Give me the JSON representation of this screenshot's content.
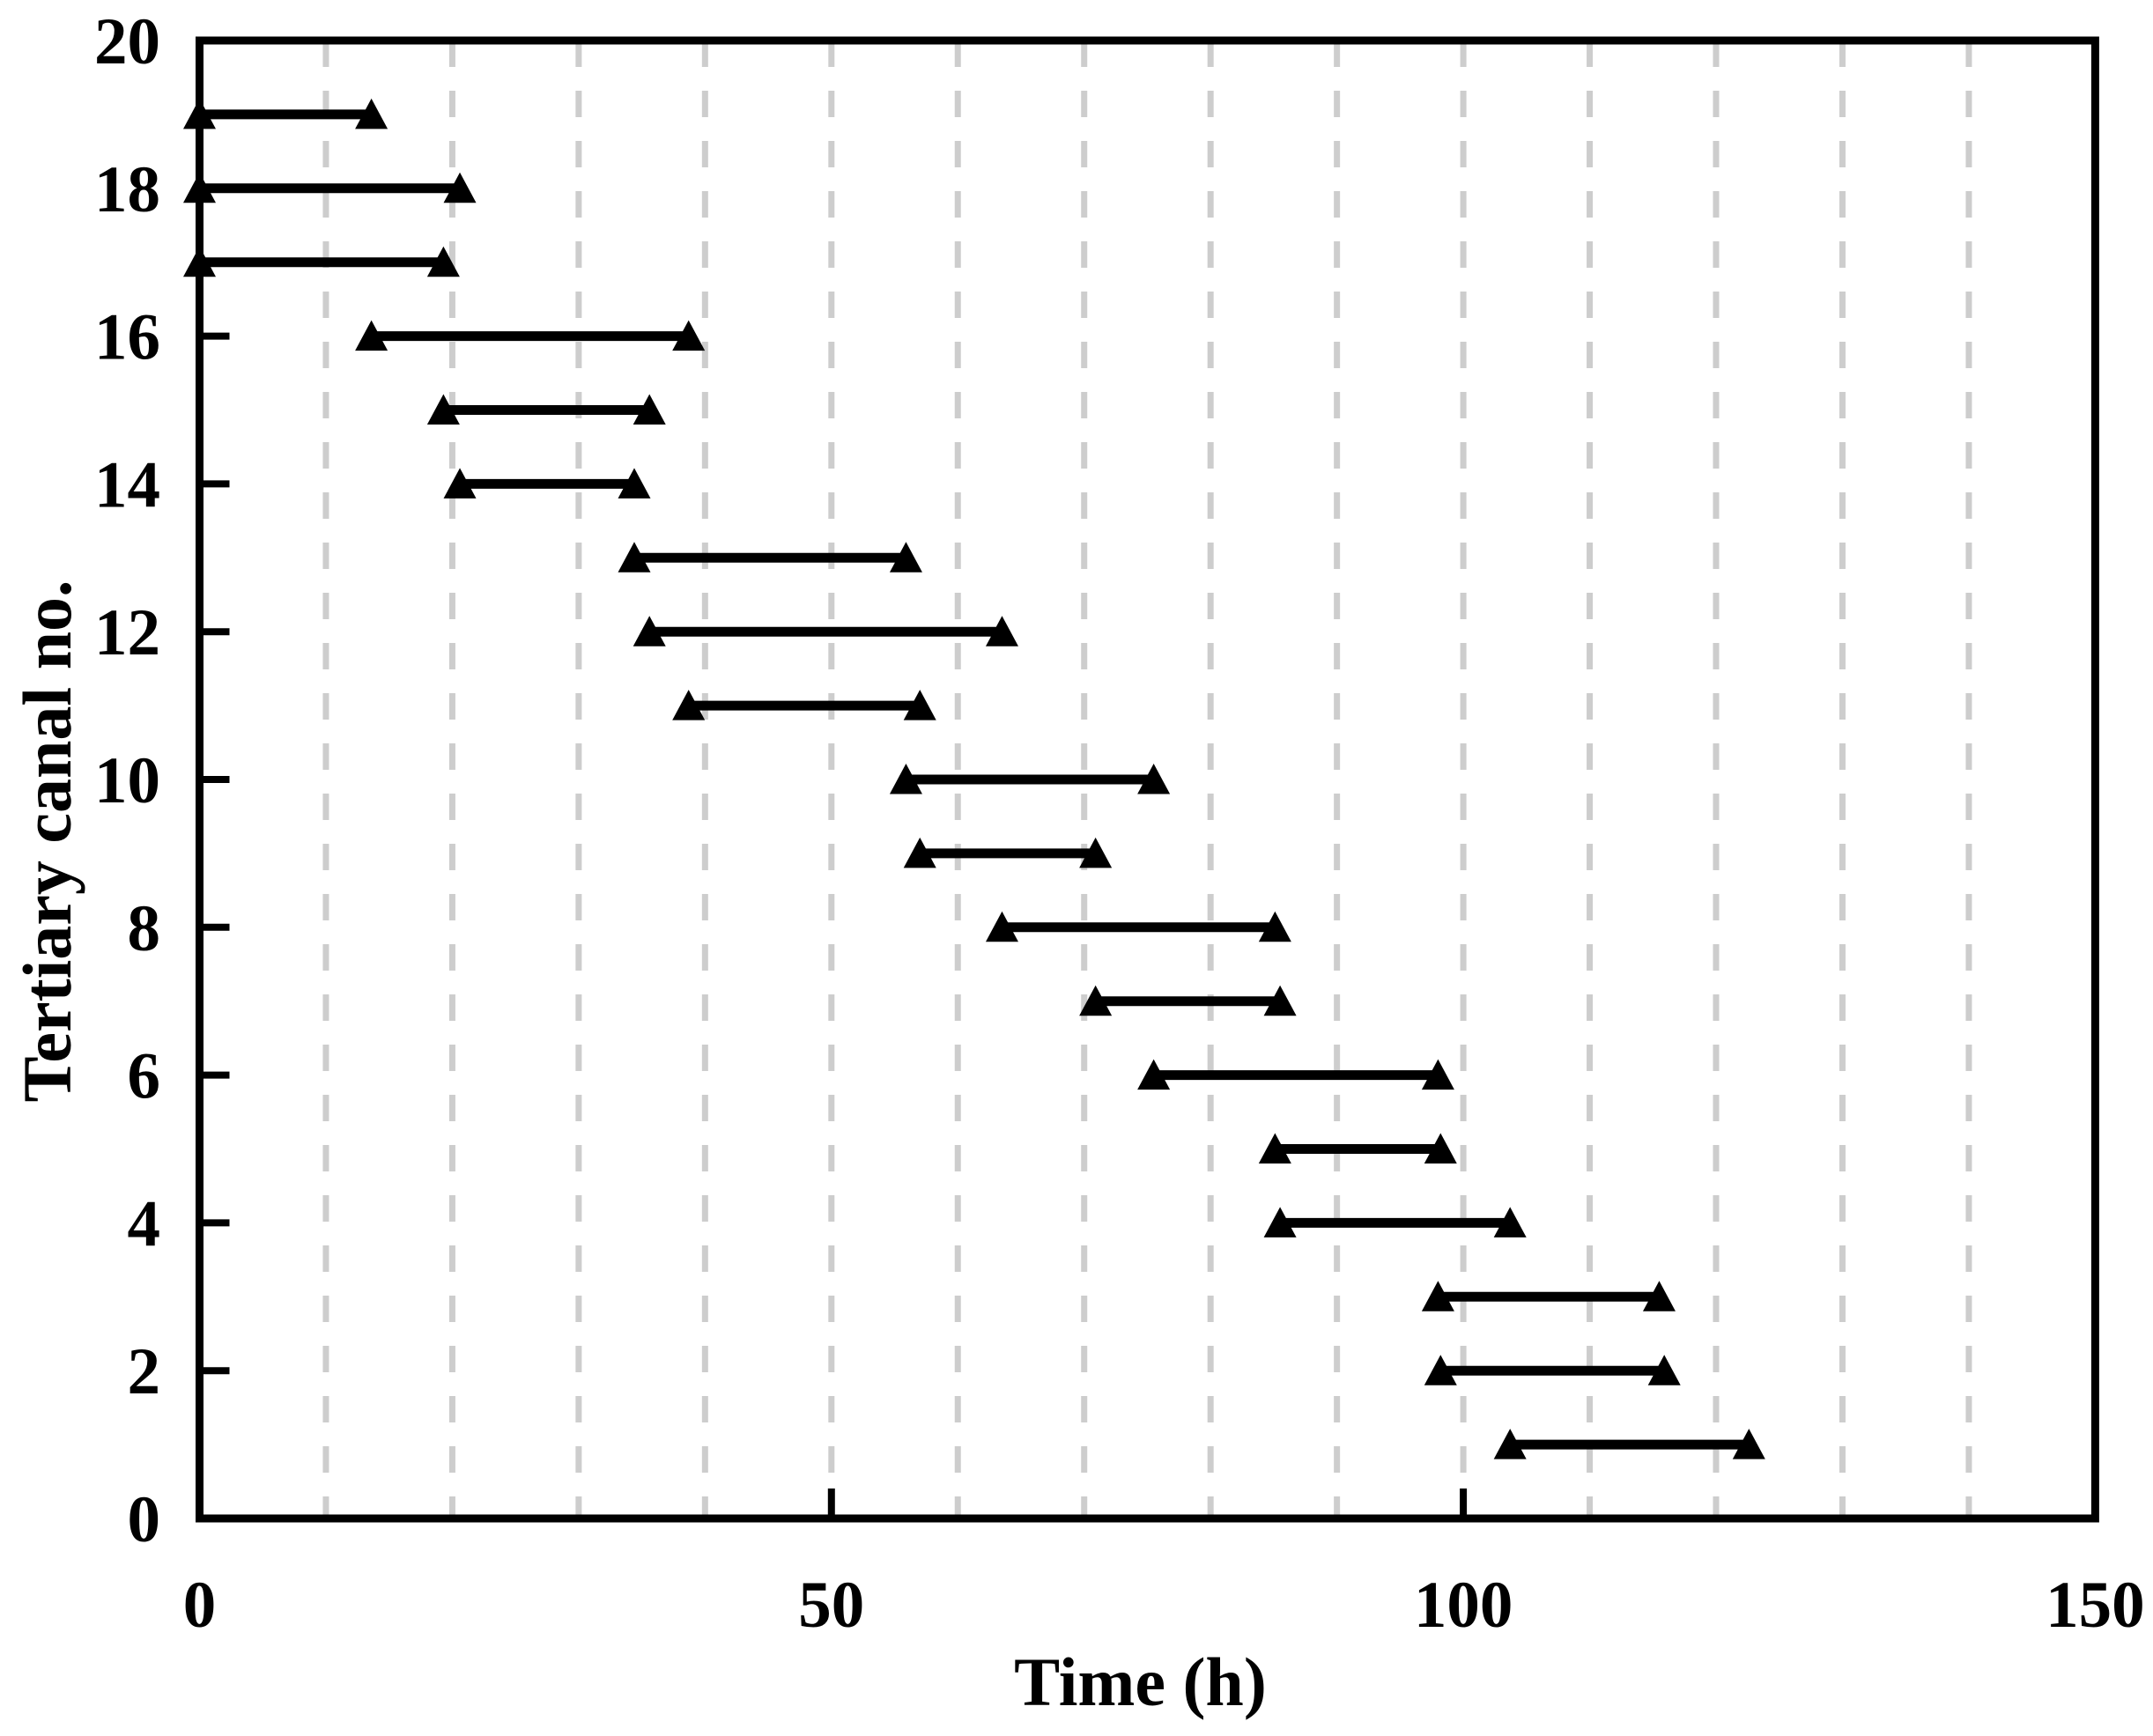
{
  "chart_data": {
    "type": "line",
    "variant": "schedule-gantt-segments",
    "title": "",
    "xlabel": "Time (h)",
    "ylabel": "Tertiary canal no.",
    "xlim": [
      0,
      150
    ],
    "ylim": [
      0,
      20
    ],
    "x_tick_labels": [
      0,
      50,
      100,
      150
    ],
    "x_major_ticks": [
      50,
      100
    ],
    "x_grid_lines": [
      10,
      20,
      30,
      40,
      50,
      60,
      70,
      80,
      90,
      100,
      110,
      120,
      130,
      140
    ],
    "y_tick_labels": [
      0,
      2,
      4,
      6,
      8,
      10,
      12,
      14,
      16,
      18,
      20
    ],
    "y_major_ticks": [
      2,
      4,
      6,
      8,
      10,
      12,
      14,
      16,
      18
    ],
    "grid": "vertical-dashed",
    "legend": "none",
    "marker": "filled-triangle-up",
    "colors": {
      "segment": "#000000",
      "marker": "#000000",
      "frame": "#000000",
      "grid": "#cdcdcd",
      "background": "#ffffff"
    },
    "segments": [
      {
        "canal": 19,
        "start": 0,
        "end": 13.6
      },
      {
        "canal": 18,
        "start": 0,
        "end": 20.6
      },
      {
        "canal": 17,
        "start": 0,
        "end": 19.3
      },
      {
        "canal": 16,
        "start": 13.6,
        "end": 38.7
      },
      {
        "canal": 15,
        "start": 19.3,
        "end": 35.6
      },
      {
        "canal": 14,
        "start": 20.6,
        "end": 34.4
      },
      {
        "canal": 13,
        "start": 34.4,
        "end": 55.9
      },
      {
        "canal": 12,
        "start": 35.6,
        "end": 63.5
      },
      {
        "canal": 11,
        "start": 38.7,
        "end": 57.0
      },
      {
        "canal": 10,
        "start": 55.9,
        "end": 75.5
      },
      {
        "canal": 9,
        "start": 57.0,
        "end": 70.9
      },
      {
        "canal": 8,
        "start": 63.5,
        "end": 85.1
      },
      {
        "canal": 7,
        "start": 70.9,
        "end": 85.5
      },
      {
        "canal": 6,
        "start": 75.5,
        "end": 98.0
      },
      {
        "canal": 5,
        "start": 85.1,
        "end": 98.2
      },
      {
        "canal": 4,
        "start": 85.5,
        "end": 103.7
      },
      {
        "canal": 3,
        "start": 98.0,
        "end": 115.5
      },
      {
        "canal": 2,
        "start": 98.2,
        "end": 115.9
      },
      {
        "canal": 1,
        "start": 103.7,
        "end": 122.6
      }
    ]
  }
}
